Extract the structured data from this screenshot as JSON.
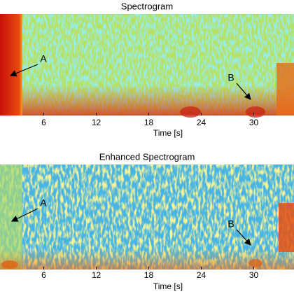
{
  "chart_data": [
    {
      "type": "spectrogram",
      "title": "Spectrogram",
      "x_label": "Time [s]",
      "xlim": [
        1,
        34.6
      ],
      "xticks": [
        6,
        12,
        18,
        24,
        30
      ],
      "annotations": [
        {
          "text": "A"
        },
        {
          "text": "B"
        }
      ]
    },
    {
      "type": "spectrogram",
      "title": "Enhanced Spectrogram",
      "x_label": "Time [s]",
      "xlim": [
        1,
        34.6
      ],
      "xticks": [
        6,
        12,
        18,
        24,
        30
      ],
      "annotations": [
        {
          "text": "A"
        },
        {
          "text": "B"
        }
      ]
    }
  ]
}
